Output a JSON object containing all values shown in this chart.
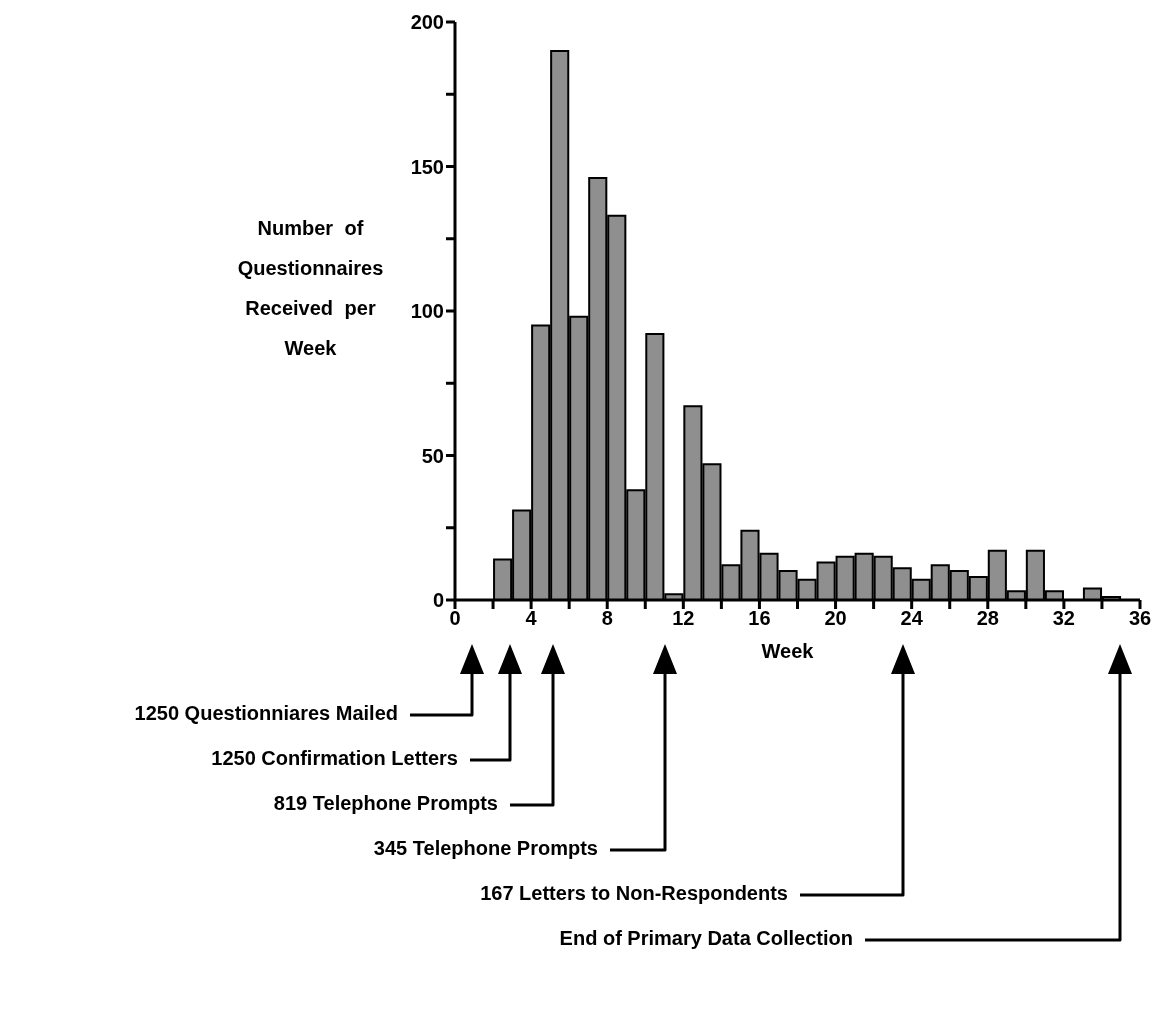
{
  "chart_data": {
    "type": "histogram",
    "xlabel": "Week",
    "ylabel": "Number of Questionnaires Received per Week",
    "bins": [
      2,
      3,
      4,
      5,
      6,
      7,
      8,
      9,
      10,
      11,
      12,
      13,
      14,
      15,
      16,
      17,
      18,
      19,
      20,
      21,
      22,
      23,
      24,
      25,
      26,
      27,
      28,
      29,
      30,
      31,
      32,
      33,
      34,
      35
    ],
    "values": [
      14,
      31,
      95,
      190,
      98,
      146,
      133,
      38,
      92,
      2,
      67,
      47,
      12,
      24,
      16,
      10,
      7,
      13,
      15,
      16,
      15,
      11,
      7,
      12,
      10,
      8,
      17,
      3,
      17,
      3,
      0,
      4,
      1
    ],
    "color": "#8f8f8f",
    "xlim": [
      0,
      36
    ],
    "xticks": [
      0,
      {
        "value": 2,
        "label": null
      },
      4,
      {
        "value": 6,
        "label": null
      },
      8,
      {
        "value": 10,
        "label": null
      },
      12,
      {
        "value": 14,
        "label": null
      },
      16,
      {
        "value": 18,
        "label": null
      },
      20,
      {
        "value": 22,
        "label": null
      },
      24,
      {
        "value": 26,
        "label": null
      },
      28,
      {
        "value": 30,
        "label": null
      },
      32,
      {
        "value": 34,
        "label": null
      },
      36
    ],
    "ylim": [
      0,
      200
    ],
    "yticks": [
      0,
      {
        "value": 25,
        "label": null
      },
      50,
      {
        "value": 75,
        "label": null
      },
      100,
      {
        "value": 125,
        "label": null
      },
      150,
      {
        "value": 175,
        "label": null
      },
      200
    ],
    "grid": false,
    "legend": false,
    "annotations": [
      "1250 Questionniares Mailed",
      "1250 Confirmation Letters",
      "819 Telephone Prompts",
      "345 Telephone Prompts",
      "167 Letters to Non-Respondents",
      "End of Primary Data Collection"
    ]
  }
}
